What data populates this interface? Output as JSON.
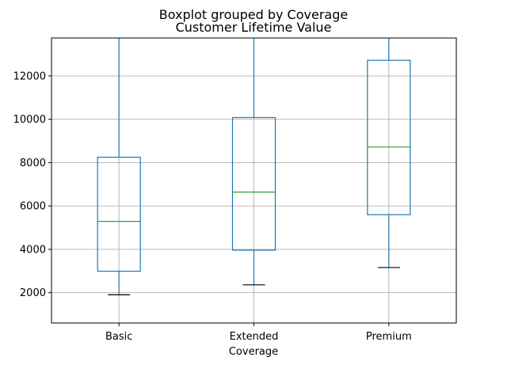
{
  "chart_data": {
    "type": "boxplot",
    "suptitle": "Boxplot grouped by Coverage",
    "title": "Customer Lifetime Value",
    "xlabel": "Coverage",
    "ylabel": "",
    "categories": [
      "Basic",
      "Extended",
      "Premium"
    ],
    "ylim": [
      600,
      13750
    ],
    "yticks": [
      2000,
      4000,
      6000,
      8000,
      10000,
      12000
    ],
    "grid": true,
    "colors": {
      "box": "#1f77b4",
      "median": "#2ca02c",
      "whisker_cap": "#000000",
      "grid": "#b0b0b0"
    },
    "boxes": [
      {
        "category": "Basic",
        "whisker_low": 1900,
        "q1": 2990,
        "median": 5290,
        "q3": 8250,
        "whisker_high": 13750
      },
      {
        "category": "Extended",
        "whisker_low": 2360,
        "q1": 3960,
        "median": 6640,
        "q3": 10080,
        "whisker_high": 13750
      },
      {
        "category": "Premium",
        "whisker_low": 3160,
        "q1": 5600,
        "median": 8720,
        "q3": 12720,
        "whisker_high": 13750
      }
    ]
  }
}
